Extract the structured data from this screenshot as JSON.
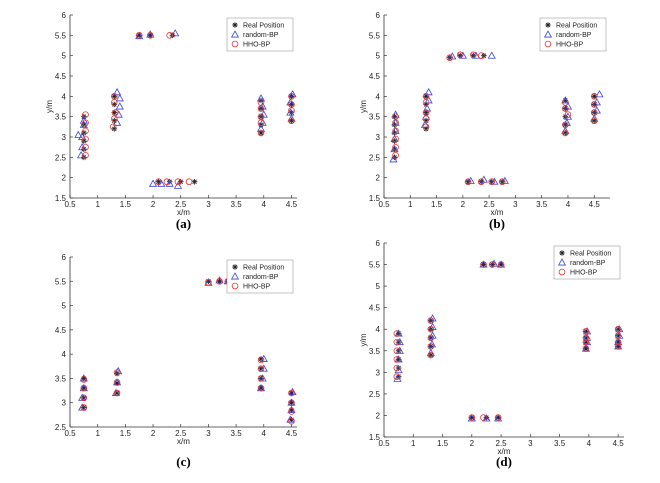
{
  "figure": {
    "legend_entries": [
      "Real Position",
      "random-BP",
      "HHO-BP"
    ],
    "colors": {
      "real": "#222222",
      "random": "#3344dd",
      "hho": "#ee3333",
      "axis": "#333333"
    }
  },
  "chart_data": [
    {
      "type": "scatter",
      "panel_label": "(a)",
      "xlabel": "x/m",
      "ylabel": "y/m",
      "xlim": [
        0.5,
        4.6
      ],
      "ylim": [
        1.5,
        6
      ],
      "xticks": [
        0.5,
        1,
        1.5,
        2,
        2.5,
        3,
        3.5,
        4,
        4.5
      ],
      "yticks": [
        1.5,
        2,
        2.5,
        3,
        3.5,
        4,
        4.5,
        5,
        5.5,
        6
      ],
      "legend_position": "top-right",
      "series": [
        {
          "name": "Real Position",
          "marker": "asterisk",
          "x": [
            0.75,
            0.75,
            0.75,
            0.75,
            0.75,
            0.75,
            1.3,
            1.3,
            1.3,
            1.3,
            1.3,
            1.75,
            1.95,
            2.35,
            2.1,
            2.3,
            2.5,
            2.75,
            3.95,
            3.95,
            3.95,
            3.95,
            3.95,
            4.5,
            4.5,
            4.5,
            4.5
          ],
          "y": [
            2.5,
            2.7,
            2.9,
            3.1,
            3.3,
            3.5,
            3.2,
            3.4,
            3.6,
            3.8,
            4.0,
            5.5,
            5.5,
            5.5,
            1.9,
            1.9,
            1.9,
            1.9,
            3.1,
            3.3,
            3.5,
            3.7,
            3.9,
            3.4,
            3.6,
            3.8,
            4.0
          ]
        },
        {
          "name": "random-BP",
          "marker": "triangle",
          "x": [
            0.65,
            0.7,
            0.72,
            0.72,
            0.75,
            0.75,
            1.35,
            1.38,
            1.4,
            1.4,
            1.35,
            1.75,
            1.95,
            2.4,
            2.0,
            2.15,
            2.3,
            2.45,
            3.95,
            3.98,
            4.0,
            3.98,
            3.95,
            4.5,
            4.48,
            4.48,
            4.52
          ],
          "y": [
            3.05,
            2.55,
            2.75,
            3.0,
            3.3,
            3.4,
            3.35,
            3.55,
            3.75,
            3.95,
            4.1,
            5.48,
            5.52,
            5.55,
            1.85,
            1.85,
            1.85,
            1.8,
            3.2,
            3.35,
            3.55,
            3.75,
            3.95,
            3.45,
            3.6,
            3.85,
            4.05
          ]
        },
        {
          "name": "HHO-BP",
          "marker": "circle",
          "x": [
            0.78,
            0.78,
            0.78,
            0.78,
            0.78,
            0.78,
            1.28,
            1.3,
            1.32,
            1.3,
            1.3,
            1.75,
            1.95,
            2.3,
            2.1,
            2.25,
            2.45,
            2.65,
            3.95,
            3.95,
            3.95,
            3.95,
            3.95,
            4.5,
            4.5,
            4.5,
            4.5
          ],
          "y": [
            2.55,
            2.75,
            2.95,
            3.15,
            3.35,
            3.55,
            3.25,
            3.45,
            3.6,
            3.85,
            4.0,
            5.5,
            5.5,
            5.5,
            1.9,
            1.9,
            1.9,
            1.9,
            3.1,
            3.35,
            3.5,
            3.7,
            3.85,
            3.4,
            3.65,
            3.8,
            4.0
          ]
        }
      ]
    },
    {
      "type": "scatter",
      "panel_label": "(b)",
      "xlabel": "x/m",
      "ylabel": "y/m",
      "xlim": [
        0.5,
        4.8
      ],
      "ylim": [
        1.5,
        6
      ],
      "xticks": [
        0.5,
        1,
        1.5,
        2,
        2.5,
        3,
        3.5,
        4,
        4.5
      ],
      "yticks": [
        1.5,
        2,
        2.5,
        3,
        3.5,
        4,
        4.5,
        5,
        5.5,
        6
      ],
      "legend_position": "top-right",
      "series": [
        {
          "name": "Real Position",
          "marker": "asterisk",
          "x": [
            0.7,
            0.7,
            0.7,
            0.7,
            0.7,
            0.7,
            1.3,
            1.3,
            1.3,
            1.3,
            1.3,
            1.75,
            1.95,
            2.2,
            2.4,
            2.1,
            2.35,
            2.55,
            2.75,
            3.95,
            3.95,
            3.95,
            3.95,
            3.95,
            4.5,
            4.5,
            4.5,
            4.5
          ],
          "y": [
            2.5,
            2.7,
            2.9,
            3.1,
            3.3,
            3.5,
            3.2,
            3.4,
            3.6,
            3.8,
            4.0,
            4.95,
            5.0,
            5.0,
            5.0,
            1.9,
            1.9,
            1.9,
            1.9,
            3.1,
            3.3,
            3.5,
            3.7,
            3.9,
            3.4,
            3.6,
            3.8,
            4.0
          ]
        },
        {
          "name": "random-BP",
          "marker": "triangle",
          "x": [
            0.68,
            0.7,
            0.7,
            0.72,
            0.72,
            0.72,
            1.28,
            1.3,
            1.32,
            1.35,
            1.35,
            1.8,
            2.0,
            2.25,
            2.55,
            2.15,
            2.4,
            2.6,
            2.8,
            3.95,
            3.98,
            4.0,
            4.0,
            3.95,
            4.5,
            4.55,
            4.55,
            4.6
          ],
          "y": [
            2.45,
            2.7,
            2.95,
            3.15,
            3.35,
            3.55,
            3.3,
            3.5,
            3.7,
            3.9,
            4.1,
            4.98,
            5.0,
            5.0,
            5.0,
            1.92,
            1.95,
            1.9,
            1.92,
            3.15,
            3.35,
            3.5,
            3.75,
            3.9,
            3.45,
            3.65,
            3.85,
            4.05
          ]
        },
        {
          "name": "HHO-BP",
          "marker": "circle",
          "x": [
            0.72,
            0.72,
            0.72,
            0.72,
            0.72,
            0.72,
            1.3,
            1.3,
            1.3,
            1.3,
            1.3,
            1.75,
            1.95,
            2.2,
            2.35,
            2.1,
            2.35,
            2.55,
            2.75,
            3.95,
            3.95,
            4.0,
            3.95,
            3.95,
            4.5,
            4.5,
            4.5,
            4.5
          ],
          "y": [
            2.55,
            2.75,
            2.95,
            3.15,
            3.35,
            3.5,
            3.25,
            3.45,
            3.6,
            3.85,
            4.0,
            4.95,
            5.02,
            5.02,
            5.0,
            1.9,
            1.9,
            1.9,
            1.9,
            3.1,
            3.3,
            3.55,
            3.7,
            3.85,
            3.4,
            3.6,
            3.8,
            4.0
          ]
        }
      ]
    },
    {
      "type": "scatter",
      "panel_label": "(c)",
      "xlabel": "x/m",
      "ylabel": "",
      "xlim": [
        0.5,
        4.6
      ],
      "ylim": [
        2.5,
        6
      ],
      "xticks": [
        0.5,
        1,
        1.5,
        2,
        2.5,
        3,
        3.5,
        4,
        4.5
      ],
      "yticks": [
        2.5,
        3,
        3.5,
        4,
        4.5,
        5,
        5.5,
        6
      ],
      "legend_position": "top-right",
      "series": [
        {
          "name": "Real Position",
          "marker": "asterisk",
          "x": [
            0.75,
            0.75,
            0.75,
            0.75,
            1.35,
            1.35,
            1.35,
            3.0,
            3.2,
            3.35,
            3.95,
            3.95,
            3.95,
            3.95,
            4.5,
            4.5,
            4.5,
            4.5
          ],
          "y": [
            2.9,
            3.1,
            3.3,
            3.5,
            3.2,
            3.4,
            3.6,
            5.5,
            5.5,
            5.5,
            3.3,
            3.5,
            3.7,
            3.9,
            2.65,
            2.85,
            3.0,
            3.2
          ]
        },
        {
          "name": "random-BP",
          "marker": "triangle",
          "x": [
            0.72,
            0.72,
            0.75,
            0.75,
            1.33,
            1.35,
            1.37,
            3.0,
            3.2,
            3.35,
            3.95,
            3.98,
            4.0,
            4.0,
            4.48,
            4.5,
            4.5,
            4.52
          ],
          "y": [
            2.9,
            3.1,
            3.3,
            3.5,
            3.2,
            3.42,
            3.65,
            5.47,
            5.52,
            5.5,
            3.3,
            3.5,
            3.7,
            3.9,
            2.65,
            2.85,
            3.0,
            3.22
          ]
        },
        {
          "name": "HHO-BP",
          "marker": "circle",
          "x": [
            0.75,
            0.75,
            0.75,
            0.75,
            1.35,
            1.35,
            1.35,
            3.0,
            3.2,
            3.35,
            3.95,
            3.95,
            3.95,
            3.95,
            4.5,
            4.5,
            4.5,
            4.5
          ],
          "y": [
            2.9,
            3.1,
            3.3,
            3.48,
            3.2,
            3.42,
            3.62,
            5.48,
            5.5,
            5.5,
            3.3,
            3.5,
            3.7,
            3.88,
            2.62,
            2.82,
            3.0,
            3.2
          ]
        }
      ]
    },
    {
      "type": "scatter",
      "panel_label": "(d)",
      "xlabel": "x/m",
      "ylabel": "y/m",
      "xlim": [
        0.5,
        4.6
      ],
      "ylim": [
        1.5,
        6
      ],
      "xticks": [
        0.5,
        1,
        1.5,
        2,
        2.5,
        3,
        3.5,
        4,
        4.5
      ],
      "yticks": [
        1.5,
        2,
        2.5,
        3,
        3.5,
        4,
        4.5,
        5,
        5.5,
        6
      ],
      "legend_position": "top-right",
      "series": [
        {
          "name": "Real Position",
          "marker": "asterisk",
          "x": [
            0.75,
            0.75,
            0.75,
            0.75,
            0.75,
            0.75,
            1.3,
            1.3,
            1.3,
            1.3,
            1.3,
            2.2,
            2.35,
            2.5,
            2.0,
            2.25,
            2.45,
            3.95,
            3.95,
            3.95,
            3.95,
            4.5,
            4.5,
            4.5,
            4.5
          ],
          "y": [
            2.9,
            3.1,
            3.3,
            3.5,
            3.7,
            3.9,
            3.4,
            3.6,
            3.8,
            4.0,
            4.2,
            5.5,
            5.5,
            5.5,
            1.95,
            1.95,
            1.95,
            3.55,
            3.7,
            3.8,
            3.95,
            3.6,
            3.7,
            3.85,
            4.0
          ]
        },
        {
          "name": "random-BP",
          "marker": "triangle",
          "x": [
            0.73,
            0.75,
            0.75,
            0.77,
            0.77,
            0.75,
            1.3,
            1.32,
            1.33,
            1.33,
            1.33,
            2.2,
            2.38,
            2.5,
            2.0,
            2.25,
            2.45,
            3.95,
            3.97,
            3.97,
            3.97,
            4.5,
            4.5,
            4.52,
            4.52
          ],
          "y": [
            2.85,
            3.05,
            3.3,
            3.5,
            3.7,
            3.9,
            3.45,
            3.65,
            3.85,
            4.05,
            4.25,
            5.5,
            5.52,
            5.5,
            1.93,
            1.93,
            1.93,
            3.55,
            3.7,
            3.8,
            3.95,
            3.6,
            3.7,
            3.85,
            4.0
          ]
        },
        {
          "name": "HHO-BP",
          "marker": "circle",
          "x": [
            0.72,
            0.72,
            0.72,
            0.72,
            0.72,
            0.72,
            1.3,
            1.3,
            1.3,
            1.3,
            1.3,
            2.2,
            2.35,
            2.5,
            2.0,
            2.2,
            2.45,
            3.95,
            3.95,
            3.95,
            3.95,
            4.5,
            4.5,
            4.5,
            4.5
          ],
          "y": [
            2.9,
            3.1,
            3.3,
            3.5,
            3.7,
            3.9,
            3.4,
            3.6,
            3.8,
            4.0,
            4.2,
            5.5,
            5.5,
            5.5,
            1.95,
            1.95,
            1.95,
            3.55,
            3.7,
            3.8,
            3.95,
            3.6,
            3.7,
            3.85,
            4.0
          ]
        }
      ]
    }
  ]
}
